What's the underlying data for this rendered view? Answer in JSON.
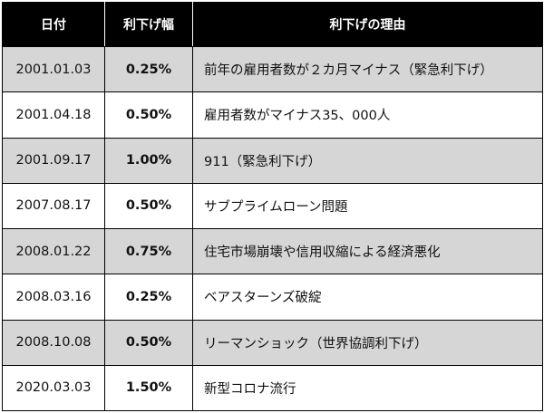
{
  "table": {
    "headers": {
      "date": "日付",
      "rate": "利下げ幅",
      "reason": "利下げの理由"
    },
    "rows": [
      {
        "date": "2001.01.03",
        "rate": "0.25%",
        "reason": "前年の雇用者数が２カ月マイナス（緊急利下げ）"
      },
      {
        "date": "2001.04.18",
        "rate": "0.50%",
        "reason": "雇用者数がマイナス35、000人"
      },
      {
        "date": "2001.09.17",
        "rate": "1.00%",
        "reason": "911（緊急利下げ）"
      },
      {
        "date": "2007.08.17",
        "rate": "0.50%",
        "reason": "サブプライムローン問題"
      },
      {
        "date": "2008.01.22",
        "rate": "0.75%",
        "reason": "住宅市場崩壊や信用収縮による経済悪化"
      },
      {
        "date": "2008.03.16",
        "rate": "0.25%",
        "reason": "ベアスターンズ破綻"
      },
      {
        "date": "2008.10.08",
        "rate": "0.50%",
        "reason": "リーマンショック（世界協調利下げ）"
      },
      {
        "date": "2020.03.03",
        "rate": "1.50%",
        "reason": "新型コロナ流行"
      }
    ]
  },
  "colors": {
    "header_bg": "#000000",
    "header_text": "#ffffff",
    "shaded_row": "#d6d6d6",
    "plain_row": "#ffffff",
    "border": "#000000"
  }
}
